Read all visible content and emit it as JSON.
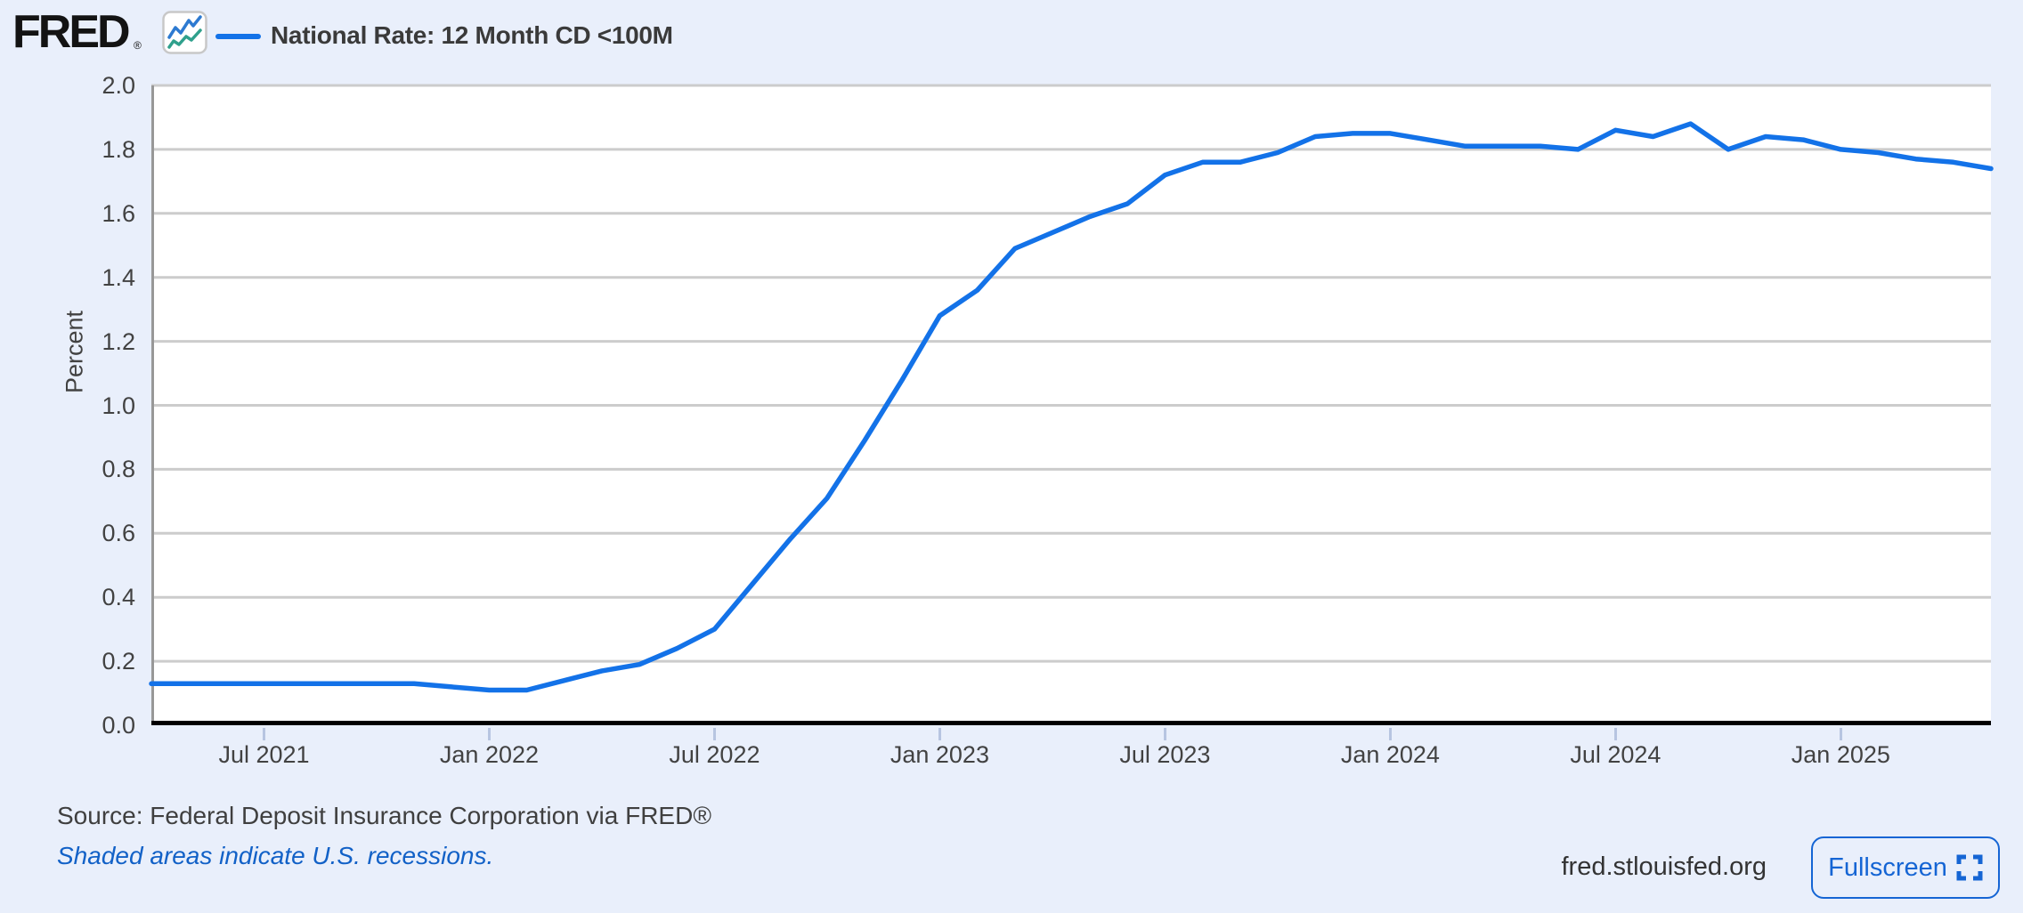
{
  "header": {
    "logo_text": "FRED",
    "logo_registered": "®",
    "legend_label": "National Rate: 12 Month CD <100M"
  },
  "chart_data": {
    "type": "line",
    "title": "National Rate: 12 Month CD <100M",
    "ylabel": "Percent",
    "ylim": [
      0.0,
      2.0
    ],
    "grid": true,
    "legend_position": "top-left",
    "x": [
      "2021-04",
      "2021-05",
      "2021-06",
      "2021-07",
      "2021-08",
      "2021-09",
      "2021-10",
      "2021-11",
      "2021-12",
      "2022-01",
      "2022-02",
      "2022-03",
      "2022-04",
      "2022-05",
      "2022-06",
      "2022-07",
      "2022-08",
      "2022-09",
      "2022-10",
      "2022-11",
      "2022-12",
      "2023-01",
      "2023-02",
      "2023-03",
      "2023-04",
      "2023-05",
      "2023-06",
      "2023-07",
      "2023-08",
      "2023-09",
      "2023-10",
      "2023-11",
      "2023-12",
      "2024-01",
      "2024-02",
      "2024-03",
      "2024-04",
      "2024-05",
      "2024-06",
      "2024-07",
      "2024-08",
      "2024-09",
      "2024-10",
      "2024-11",
      "2024-12",
      "2025-01",
      "2025-02",
      "2025-03",
      "2025-04",
      "2025-05"
    ],
    "values": [
      0.13,
      0.13,
      0.13,
      0.13,
      0.13,
      0.13,
      0.13,
      0.13,
      0.12,
      0.11,
      0.11,
      0.14,
      0.17,
      0.19,
      0.24,
      0.3,
      0.44,
      0.58,
      0.71,
      0.89,
      1.08,
      1.28,
      1.36,
      1.49,
      1.54,
      1.59,
      1.63,
      1.72,
      1.76,
      1.76,
      1.79,
      1.84,
      1.85,
      1.85,
      1.83,
      1.81,
      1.81,
      1.81,
      1.8,
      1.86,
      1.84,
      1.88,
      1.8,
      1.84,
      1.83,
      1.8,
      1.79,
      1.77,
      1.76,
      1.74
    ],
    "y_ticks": [
      {
        "label": "0.0",
        "value": 0.0
      },
      {
        "label": "0.2",
        "value": 0.2
      },
      {
        "label": "0.4",
        "value": 0.4
      },
      {
        "label": "0.6",
        "value": 0.6
      },
      {
        "label": "0.8",
        "value": 0.8
      },
      {
        "label": "1.0",
        "value": 1.0
      },
      {
        "label": "1.2",
        "value": 1.2
      },
      {
        "label": "1.4",
        "value": 1.4
      },
      {
        "label": "1.6",
        "value": 1.6
      },
      {
        "label": "1.8",
        "value": 1.8
      },
      {
        "label": "2.0",
        "value": 2.0
      }
    ],
    "x_ticks": [
      {
        "label": "Jul 2021",
        "month": 3
      },
      {
        "label": "Jan 2022",
        "month": 9
      },
      {
        "label": "Jul 2022",
        "month": 15
      },
      {
        "label": "Jan 2023",
        "month": 21
      },
      {
        "label": "Jul 2023",
        "month": 27
      },
      {
        "label": "Jan 2024",
        "month": 33
      },
      {
        "label": "Jul 2024",
        "month": 39
      },
      {
        "label": "Jan 2025",
        "month": 45
      }
    ]
  },
  "footer": {
    "source_text": "Source: Federal Deposit Insurance Corporation via FRED®",
    "recession_note": "Shaded areas indicate U.S. recessions.",
    "site_link": "fred.stlouisfed.org",
    "fullscreen_label": "Fullscreen"
  },
  "colors": {
    "page_background": "#e9effb",
    "plot_background": "#ffffff",
    "series_line": "#1372e8",
    "gridline": "#cccccc",
    "axis_line": "#000000",
    "plot_left_border": "#989898",
    "tick_mark": "#b7c5e1",
    "accent_blue": "#1565d4",
    "recession_text_blue": "#1261c7",
    "icon_line_blue": "#2d7ad1",
    "icon_line_teal": "#2fa08c"
  }
}
